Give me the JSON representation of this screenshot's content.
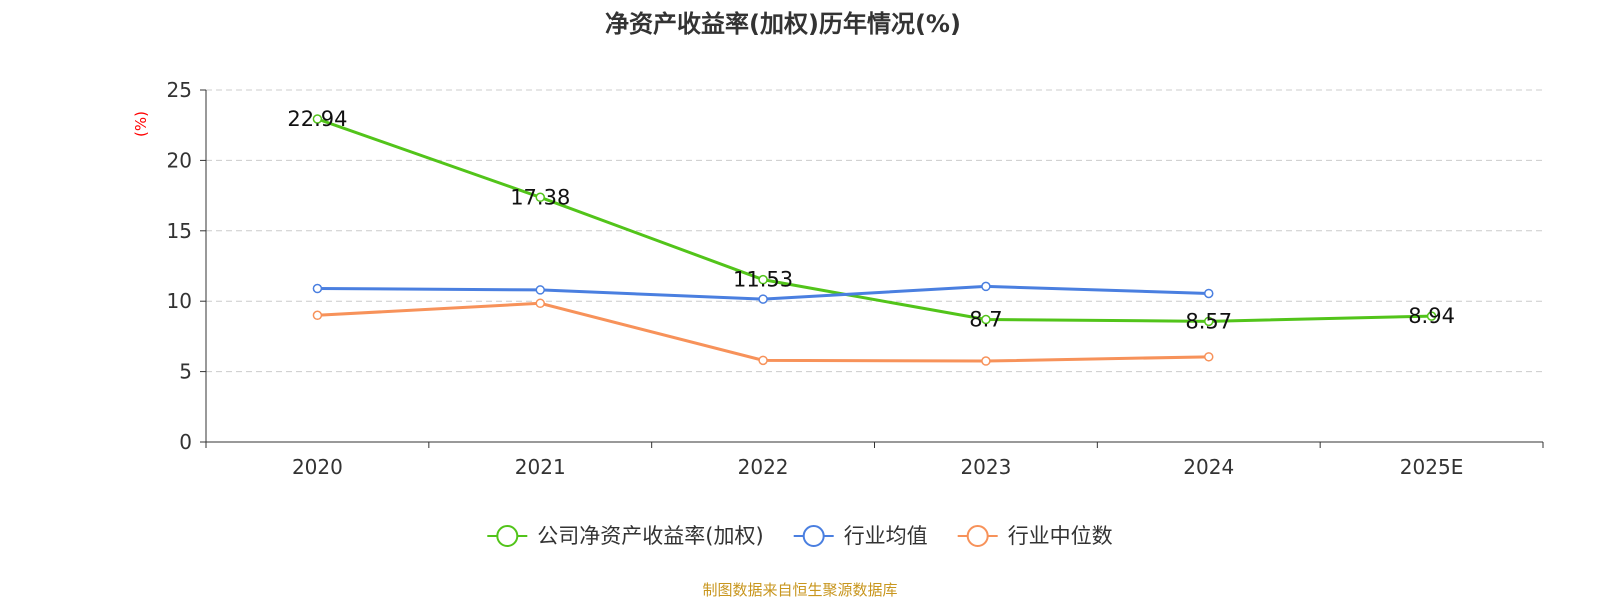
{
  "chart_data": {
    "type": "line",
    "title": "净资产收益率(加权)历年情况(%)",
    "ylabel": "(%)",
    "xlabel": "",
    "categories": [
      "2020",
      "2021",
      "2022",
      "2023",
      "2024",
      "2025E"
    ],
    "ylim": [
      0,
      25
    ],
    "yticks": [
      0,
      5,
      10,
      15,
      20,
      25
    ],
    "grid": true,
    "legend_position": "bottom",
    "series": [
      {
        "name": "公司净资产收益率(加权)",
        "color": "#52c41a",
        "show_labels": true,
        "values": [
          22.94,
          17.38,
          11.53,
          8.7,
          8.57,
          8.94
        ],
        "labels": [
          "22.94",
          "17.38",
          "11.53",
          "8.7",
          "8.57",
          "8.94"
        ]
      },
      {
        "name": "行业均值",
        "color": "#4a7fe0",
        "show_labels": false,
        "values": [
          10.9,
          10.8,
          10.15,
          11.05,
          10.55,
          null
        ]
      },
      {
        "name": "行业中位数",
        "color": "#f7925a",
        "show_labels": false,
        "values": [
          9.0,
          9.85,
          5.8,
          5.75,
          6.05,
          null
        ]
      }
    ]
  },
  "footer": "制图数据来自恒生聚源数据库",
  "colors": {
    "axis": "#333333",
    "grid": "#cccccc",
    "ylabel": "#ff0000",
    "footer": "#c8961e"
  }
}
